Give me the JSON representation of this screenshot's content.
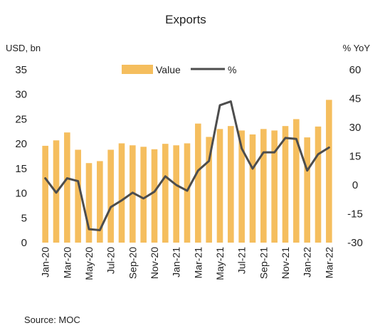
{
  "chart_data": {
    "type": "bar+line",
    "title": "Exports",
    "left_axis_label": "USD, bn",
    "right_axis_label": "% YoY",
    "left_ylim": [
      0,
      35
    ],
    "left_ticks": [
      0,
      5,
      10,
      15,
      20,
      25,
      30,
      35
    ],
    "right_ylim": [
      -30,
      60
    ],
    "right_ticks": [
      -30,
      -15,
      0,
      15,
      30,
      45,
      60
    ],
    "categories": [
      "Jan-20",
      "Feb-20",
      "Mar-20",
      "Apr-20",
      "May-20",
      "Jun-20",
      "Jul-20",
      "Aug-20",
      "Sep-20",
      "Oct-20",
      "Nov-20",
      "Dec-20",
      "Jan-21",
      "Feb-21",
      "Mar-21",
      "Apr-21",
      "May-21",
      "Jun-21",
      "Jul-21",
      "Aug-21",
      "Sep-21",
      "Oct-21",
      "Nov-21",
      "Dec-21",
      "Jan-22",
      "Feb-22",
      "Mar-22"
    ],
    "x_tick_labels": [
      "Jan-20",
      "Mar-20",
      "May-20",
      "Jul-20",
      "Sep-20",
      "Nov-20",
      "Jan-21",
      "Mar-21",
      "May-21",
      "Jul-21",
      "Sep-21",
      "Nov-21",
      "Jan-22",
      "Mar-22"
    ],
    "series": [
      {
        "name": "Value",
        "type": "bar",
        "axis": "left",
        "color": "#F5BE5E",
        "values": [
          19.6,
          20.7,
          22.3,
          18.8,
          16.1,
          16.5,
          18.8,
          20.1,
          19.7,
          19.4,
          18.9,
          20.0,
          19.7,
          20.1,
          24.1,
          21.4,
          23.0,
          23.6,
          22.7,
          21.9,
          23.0,
          22.7,
          23.6,
          25.0,
          21.3,
          23.5,
          28.9
        ]
      },
      {
        "name": "%",
        "type": "line",
        "axis": "right",
        "color": "#4D4D4D",
        "values": [
          3.5,
          -4.0,
          3.5,
          2.0,
          -23.0,
          -23.5,
          -11.5,
          -8.0,
          -4.0,
          -7.0,
          -3.5,
          4.5,
          0.0,
          -3.0,
          7.5,
          12.5,
          41.5,
          43.5,
          19.0,
          8.5,
          17.0,
          17.0,
          24.5,
          24.0,
          7.5,
          16.0,
          19.5
        ]
      }
    ],
    "legend_position": "top-center",
    "grid": false
  },
  "source_text": "Source:  MOC"
}
